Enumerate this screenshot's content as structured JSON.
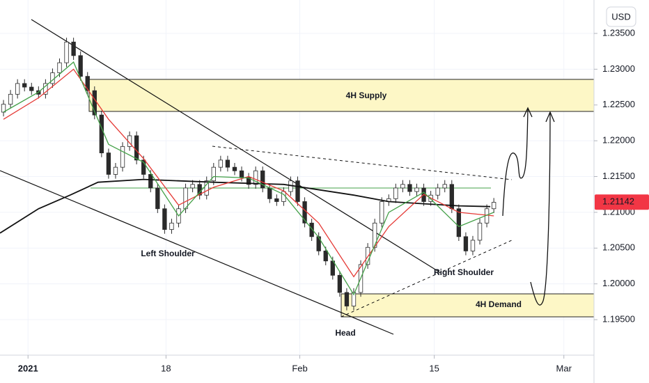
{
  "chart_data": {
    "type": "candlestick",
    "currency": "USD",
    "last_price": 1.21142,
    "up_color": "#ffffff",
    "down_color": "#2a2a2a",
    "annotations": [
      "4H Supply",
      "4H Demand",
      "Left Shoulder",
      "Head",
      "Right Shoulder"
    ],
    "open": [
      1.224,
      1.2251,
      1.2265,
      1.228,
      1.2275,
      1.227,
      1.2265,
      1.228,
      1.2295,
      1.2309,
      1.2338,
      1.2319,
      1.229,
      1.227,
      1.2236,
      1.2183,
      1.2153,
      1.2163,
      1.2192,
      1.2207,
      1.2173,
      1.2153,
      1.2134,
      1.2105,
      1.2076,
      1.2085,
      1.2105,
      1.2134,
      1.2139,
      1.2124,
      1.2144,
      1.2163,
      1.2173,
      1.2163,
      1.2158,
      1.2149,
      1.2139,
      1.2158,
      1.2134,
      1.2119,
      1.2115,
      1.2129,
      1.2144,
      1.2115,
      1.2085,
      1.2066,
      1.2046,
      1.2032,
      1.2012,
      1.1988,
      1.1969,
      1.1988,
      1.2027,
      1.2051,
      1.2085,
      1.2115,
      1.2119,
      1.2134,
      1.2139,
      1.2129,
      1.2134,
      1.2115,
      1.2124,
      1.2134,
      1.2139,
      1.2105,
      1.2066,
      1.2046,
      1.2061,
      1.2085,
      1.2105
    ],
    "high": [
      1.2257,
      1.2271,
      1.2286,
      1.2286,
      1.2281,
      1.2276,
      1.2286,
      1.2301,
      1.2315,
      1.2344,
      1.2344,
      1.2325,
      1.2296,
      1.2276,
      1.2242,
      1.2189,
      1.2169,
      1.2198,
      1.2213,
      1.2213,
      1.2179,
      1.2159,
      1.214,
      1.2111,
      1.2091,
      1.2111,
      1.214,
      1.2145,
      1.2145,
      1.215,
      1.2169,
      1.2179,
      1.2179,
      1.2169,
      1.2164,
      1.2155,
      1.2164,
      1.2164,
      1.214,
      1.2125,
      1.2135,
      1.215,
      1.215,
      1.2121,
      1.2091,
      1.2072,
      1.2052,
      1.2038,
      1.2018,
      1.1994,
      1.1994,
      1.2033,
      1.2057,
      1.2091,
      1.2121,
      1.2125,
      1.214,
      1.2145,
      1.2145,
      1.214,
      1.214,
      1.213,
      1.214,
      1.2145,
      1.2145,
      1.2111,
      1.2072,
      1.2067,
      1.2091,
      1.2111,
      1.212
    ],
    "low": [
      1.2234,
      1.2245,
      1.2259,
      1.2269,
      1.2264,
      1.2259,
      1.2259,
      1.2274,
      1.2289,
      1.2303,
      1.2313,
      1.2284,
      1.2264,
      1.223,
      1.2177,
      1.2147,
      1.2147,
      1.2157,
      1.2186,
      1.2167,
      1.2147,
      1.2128,
      1.2099,
      1.207,
      1.207,
      1.2079,
      1.2099,
      1.2128,
      1.2118,
      1.2118,
      1.2138,
      1.2157,
      1.2157,
      1.2152,
      1.2143,
      1.2133,
      1.2133,
      1.2128,
      1.2113,
      1.2109,
      1.2109,
      1.2123,
      1.2109,
      1.2079,
      1.206,
      1.204,
      1.2026,
      1.2006,
      1.1982,
      1.1963,
      1.1963,
      1.1982,
      1.2021,
      1.2045,
      1.2079,
      1.2109,
      1.2113,
      1.2128,
      1.2123,
      1.2123,
      1.2109,
      1.2109,
      1.2118,
      1.2128,
      1.2099,
      1.206,
      1.204,
      1.204,
      1.2055,
      1.2079,
      1.2099
    ],
    "close": [
      1.2251,
      1.2265,
      1.228,
      1.2275,
      1.227,
      1.2265,
      1.228,
      1.2295,
      1.2309,
      1.2338,
      1.2319,
      1.229,
      1.227,
      1.2236,
      1.2183,
      1.2153,
      1.2163,
      1.2192,
      1.2207,
      1.2173,
      1.2153,
      1.2134,
      1.2105,
      1.2076,
      1.2085,
      1.2105,
      1.2134,
      1.2139,
      1.2124,
      1.2144,
      1.2163,
      1.2173,
      1.2163,
      1.2158,
      1.2149,
      1.2139,
      1.2158,
      1.2134,
      1.2119,
      1.2115,
      1.2129,
      1.2144,
      1.2115,
      1.2085,
      1.2066,
      1.2046,
      1.2032,
      1.2012,
      1.1988,
      1.1969,
      1.1988,
      1.2027,
      1.2051,
      1.2085,
      1.2115,
      1.2119,
      1.2134,
      1.2139,
      1.2129,
      1.2134,
      1.2115,
      1.2124,
      1.2134,
      1.2139,
      1.2105,
      1.2066,
      1.2046,
      1.2061,
      1.2085,
      1.2105,
      1.2114
    ],
    "lines": [
      {
        "color": "#111111",
        "x": [
          -0.5,
          5,
          9.5,
          13.5,
          20,
          30,
          40,
          50,
          55,
          60,
          65,
          69.5
        ],
        "values": [
          1.2071,
          1.2105,
          1.2124,
          1.2142,
          1.2146,
          1.2142,
          1.2139,
          1.2124,
          1.2115,
          1.2112,
          1.2109,
          1.2108
        ]
      },
      {
        "color": "#e53935",
        "x": [
          0,
          5,
          10,
          15,
          20,
          25,
          30,
          35,
          40,
          45,
          50,
          55,
          60,
          65,
          70
        ],
        "values": [
          1.223,
          1.226,
          1.23,
          1.223,
          1.2175,
          1.211,
          1.2135,
          1.215,
          1.213,
          1.2085,
          1.201,
          1.208,
          1.2125,
          1.21,
          1.2095
        ]
      },
      {
        "color": "#43a047",
        "x": [
          0,
          5,
          10,
          15,
          20,
          25,
          30,
          35,
          40,
          45,
          50,
          55,
          60,
          65,
          70
        ],
        "values": [
          1.224,
          1.2268,
          1.231,
          1.2195,
          1.217,
          1.2095,
          1.215,
          1.2148,
          1.2125,
          1.2065,
          1.1985,
          1.21,
          1.2128,
          1.208,
          1.21
        ]
      }
    ],
    "xlim": [
      -0.5,
      84.3
    ],
    "xticks": [
      {
        "value": 3.5,
        "label": "2021"
      },
      {
        "value": 23.2,
        "label": "18"
      },
      {
        "value": 42.3,
        "label": "Feb"
      },
      {
        "value": 61.5,
        "label": "15"
      },
      {
        "value": 80,
        "label": "Mar"
      }
    ],
    "ylim": [
      1.19004,
      1.23967
    ],
    "yticks": [
      {
        "value": 1.195,
        "label": "1.19500"
      },
      {
        "value": 1.2,
        "label": "1.20000"
      },
      {
        "value": 1.205,
        "label": "1.20500"
      },
      {
        "value": 1.21,
        "label": "1.21000"
      },
      {
        "value": 1.215,
        "label": "1.21500"
      },
      {
        "value": 1.22,
        "label": "1.22000"
      },
      {
        "value": 1.225,
        "label": "1.22500"
      },
      {
        "value": 1.23,
        "label": "1.23000"
      },
      {
        "value": 1.235,
        "label": "1.23500"
      }
    ],
    "grid": true
  }
}
